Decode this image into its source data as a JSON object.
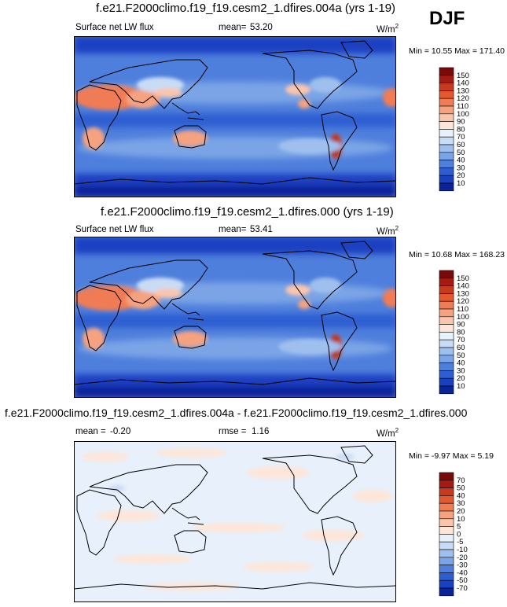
{
  "season": "DJF",
  "panels": [
    {
      "title": "f.e21.F2000climo.f19_f19.cesm2_1.dfires.004a (yrs 1-19)",
      "left_label": "Surface net LW flux",
      "mid_label": "mean=",
      "mid_value": "53.20",
      "units": "W/m",
      "units_sup": "2",
      "minmax": "Min =  10.55 Max = 171.40"
    },
    {
      "title": "f.e21.F2000climo.f19_f19.cesm2_1.dfires.000 (yrs 1-19)",
      "left_label": "Surface net LW flux",
      "mid_label": "mean=",
      "mid_value": "53.41",
      "units": "W/m",
      "units_sup": "2",
      "minmax": "Min =  10.68 Max = 168.23"
    },
    {
      "title": "f.e21.F2000climo.f19_f19.cesm2_1.dfires.004a - f.e21.F2000climo.f19_f19.cesm2_1.dfires.000",
      "left_label": "mean =",
      "left_value": "-0.20",
      "mid_label": "rmse =",
      "mid_value": "1.16",
      "units": "W/m",
      "units_sup": "2",
      "minmax": "Min =  -9.97 Max =   5.19"
    }
  ],
  "colorbars": [
    {
      "levels": [
        "150",
        "140",
        "130",
        "120",
        "110",
        "100",
        "90",
        "80",
        "70",
        "60",
        "50",
        "40",
        "30",
        "20",
        "10"
      ],
      "colors": [
        "#7a0a0a",
        "#a51a12",
        "#c73a1e",
        "#e3582e",
        "#f07c55",
        "#f5a280",
        "#fac5ad",
        "#fde6d9",
        "#e8f0fb",
        "#c9dcf5",
        "#9fc0ee",
        "#7aa4e6",
        "#4f7fdc",
        "#2f5ed2",
        "#1a40c2",
        "#0b2399"
      ]
    },
    {
      "levels": [
        "150",
        "140",
        "130",
        "120",
        "110",
        "100",
        "90",
        "80",
        "70",
        "60",
        "50",
        "40",
        "30",
        "20",
        "10"
      ],
      "colors": [
        "#7a0a0a",
        "#a51a12",
        "#c73a1e",
        "#e3582e",
        "#f07c55",
        "#f5a280",
        "#fac5ad",
        "#fde6d9",
        "#e8f0fb",
        "#c9dcf5",
        "#9fc0ee",
        "#7aa4e6",
        "#4f7fdc",
        "#2f5ed2",
        "#1a40c2",
        "#0b2399"
      ]
    },
    {
      "levels": [
        "70",
        "50",
        "40",
        "30",
        "20",
        "10",
        "5",
        "0",
        "-5",
        "-10",
        "-20",
        "-30",
        "-40",
        "-50",
        "-70"
      ],
      "colors": [
        "#7a0a0a",
        "#a51a12",
        "#c73a1e",
        "#e3582e",
        "#f07c55",
        "#f5a280",
        "#fac5ad",
        "#fde6d9",
        "#e8f0fb",
        "#c9dcf5",
        "#9fc0ee",
        "#7aa4e6",
        "#4f7fdc",
        "#2f5ed2",
        "#1a40c2",
        "#0b2399"
      ]
    }
  ],
  "chart_data": [
    {
      "type": "heatmap",
      "title": "f.e21.F2000climo.f19_f19.cesm2_1.dfires.004a (yrs 1-19)",
      "variable": "Surface net LW flux",
      "units": "W/m2",
      "mean": 53.2,
      "min": 10.55,
      "max": 171.4,
      "contour_levels": [
        10,
        20,
        30,
        40,
        50,
        60,
        70,
        80,
        90,
        100,
        110,
        120,
        130,
        140,
        150
      ],
      "features": [
        "high LW flux over Sahara/Arabia (~100-130)",
        "high over Australia (~100)",
        "max over Andes/Argentina (~150+)",
        "low over tropics and polar regions (~20-40)"
      ]
    },
    {
      "type": "heatmap",
      "title": "f.e21.F2000climo.f19_f19.cesm2_1.dfires.000 (yrs 1-19)",
      "variable": "Surface net LW flux",
      "units": "W/m2",
      "mean": 53.41,
      "min": 10.68,
      "max": 168.23,
      "contour_levels": [
        10,
        20,
        30,
        40,
        50,
        60,
        70,
        80,
        90,
        100,
        110,
        120,
        130,
        140,
        150
      ]
    },
    {
      "type": "heatmap",
      "title": "f.e21.F2000climo.f19_f19.cesm2_1.dfires.004a - f.e21.F2000climo.f19_f19.cesm2_1.dfires.000",
      "variable": "difference",
      "units": "W/m2",
      "mean": -0.2,
      "rmse": 1.16,
      "min": -9.97,
      "max": 5.19,
      "contour_levels": [
        -70,
        -50,
        -40,
        -30,
        -20,
        -10,
        -5,
        0,
        5,
        10,
        20,
        30,
        40,
        50,
        70
      ]
    }
  ]
}
